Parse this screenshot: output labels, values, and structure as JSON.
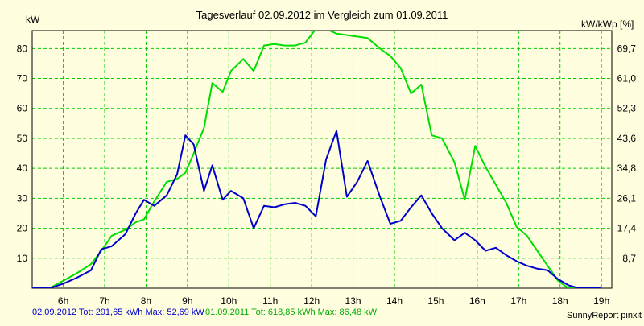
{
  "chart_data": {
    "type": "line",
    "title": "Tagesverlauf 02.09.2012 im Vergleich zum 01.09.2011",
    "y_left_label": "kW",
    "y_right_label": "kW/kWp [%]",
    "x_tick_labels": [
      "6h",
      "7h",
      "8h",
      "9h",
      "10h",
      "11h",
      "12h",
      "13h",
      "14h",
      "15h",
      "16h",
      "17h",
      "18h",
      "19h"
    ],
    "x_ticks": [
      6,
      7,
      8,
      9,
      10,
      11,
      12,
      13,
      14,
      15,
      16,
      17,
      18,
      19
    ],
    "xlim": [
      5.25,
      19.25
    ],
    "y_left_ticks": [
      10,
      20,
      30,
      40,
      50,
      60,
      70,
      80
    ],
    "y_right_tick_labels": [
      "8,7",
      "17,4",
      "26,1",
      "34,8",
      "43,6",
      "52,3",
      "61,0",
      "69,7"
    ],
    "ylim": [
      0,
      86
    ],
    "grid": true,
    "series": [
      {
        "name": "02.09.2012",
        "color": "#0000cc",
        "x": [
          5.25,
          5.67,
          6.0,
          6.33,
          6.67,
          6.92,
          7.17,
          7.5,
          7.75,
          7.95,
          8.2,
          8.5,
          8.75,
          8.95,
          9.15,
          9.4,
          9.6,
          9.85,
          10.05,
          10.35,
          10.6,
          10.85,
          11.1,
          11.35,
          11.6,
          11.85,
          12.1,
          12.35,
          12.6,
          12.85,
          13.1,
          13.35,
          13.65,
          13.9,
          14.15,
          14.4,
          14.65,
          14.9,
          15.15,
          15.45,
          15.7,
          15.95,
          16.2,
          16.45,
          16.7,
          16.95,
          17.2,
          17.45,
          17.7,
          17.95,
          18.2,
          18.45,
          18.75,
          19.0
        ],
        "values": [
          0,
          0,
          1.5,
          3.5,
          6,
          13,
          14,
          18,
          25,
          29.5,
          27.5,
          31,
          38,
          51,
          48,
          32.5,
          41,
          29.5,
          32.5,
          30,
          20,
          27.5,
          27,
          28,
          28.5,
          27.5,
          24,
          43,
          52.5,
          30.5,
          35.5,
          42.5,
          30.5,
          21.5,
          22.5,
          27,
          31,
          25,
          20,
          16,
          18.5,
          16,
          12.5,
          13.5,
          11,
          9,
          7.5,
          6.5,
          6,
          3,
          1,
          0,
          0,
          0
        ]
      },
      {
        "name": "01.09.2011",
        "color": "#00dd00",
        "x": [
          5.25,
          5.67,
          6.0,
          6.33,
          6.67,
          6.92,
          7.17,
          7.5,
          7.75,
          7.95,
          8.2,
          8.5,
          8.75,
          8.95,
          9.15,
          9.4,
          9.6,
          9.85,
          10.05,
          10.35,
          10.6,
          10.85,
          11.1,
          11.35,
          11.6,
          11.85,
          12.1,
          12.35,
          12.6,
          12.85,
          13.1,
          13.35,
          13.65,
          13.9,
          14.15,
          14.4,
          14.65,
          14.9,
          15.15,
          15.45,
          15.7,
          15.95,
          16.2,
          16.45,
          16.7,
          16.95,
          17.2,
          17.45,
          17.7,
          17.95,
          18.2,
          18.45,
          18.75,
          19.0
        ],
        "values": [
          0,
          0,
          2.5,
          5,
          8,
          12.5,
          17.5,
          19.5,
          22,
          23,
          29,
          35.5,
          36.5,
          38.5,
          45,
          53.5,
          68.5,
          65.5,
          72.5,
          76.5,
          72.5,
          81,
          81.5,
          81,
          81,
          82,
          86.5,
          86.5,
          85,
          84.5,
          84,
          83.5,
          80,
          77.5,
          73.5,
          65,
          68,
          51,
          50,
          42,
          29.5,
          47.5,
          40.5,
          34.5,
          28.5,
          20.5,
          17.5,
          12.5,
          7.5,
          2.5,
          0,
          0,
          0,
          0
        ]
      }
    ],
    "footer": {
      "series1_text": "02.09.2012 Tot: 291,65 kWh Max: 52,69 kW",
      "series2_text": "01.09.2011 Tot: 618,85 kWh Max: 86,48 kW",
      "credit": "SunnyReport pinxit"
    }
  }
}
